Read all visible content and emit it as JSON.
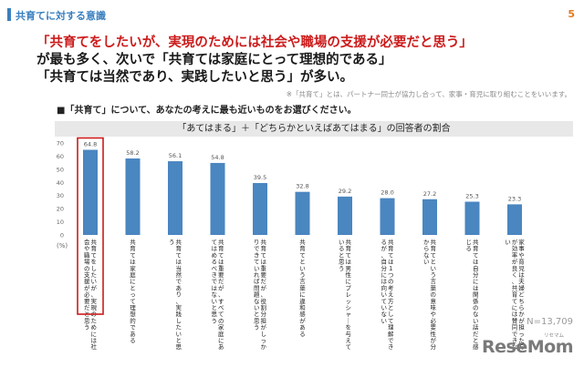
{
  "header": {
    "section_title": "共育てに対する意識",
    "page_number": "5"
  },
  "headline": {
    "line1": "「共育てをしたいが、実現のためには社会や職場の支援が必要だと思う」",
    "line2": "が最も多く、次いで「共育ては家庭にとって理想的である」",
    "line3": "「共育ては当然であり、実践したいと思う」が多い。"
  },
  "footnote": "※「共育て」とは、パートナー同士が協力し合って、家事・育児に取り組むことをいいます。",
  "question": "■「共育て」について、あなたの考えに最も近いものをお選びください。",
  "sample_size": "N=13,709",
  "logo": {
    "text": "ReseMom",
    "small": "リセマム"
  },
  "colors": {
    "bar": "#4a86c0",
    "highlight": "#cc1b1b",
    "accent": "#3a7fbf"
  },
  "chart_data": {
    "type": "bar",
    "title": "「あてはまる」＋「どちらかといえばあてはまる」の回答者の割合",
    "unit_label": "(%)",
    "ylim": [
      0,
      70
    ],
    "yticks": [
      0,
      10,
      20,
      30,
      40,
      50,
      60,
      70
    ],
    "highlight_index": 0,
    "categories": [
      "共育てをしたいが、実現のためには社会や職場の支援が必要だと思う",
      "共育ては家庭にとって理想的である",
      "共育ては当然であり、実践したいと思う",
      "共育ては重要だが、すべての家庭にあてはめるべきではないと思う",
      "共育ては重要だが、役割分担がしっかりできていれば問題ないと思う",
      "共育てという言葉に違和感がある",
      "共育ては男性にプレッシャーを与えていると思う",
      "共育ては１つの考え方として理解できるが、自分には向いていない",
      "共育てという言葉の意味や必要性が分からない",
      "共育ては自分には関係のない話だと感じる",
      "家事や育児は夫婦どちらかが担った方が効率が良く、共育てには賛同できない"
    ],
    "values": [
      64.8,
      58.2,
      56.1,
      54.8,
      39.5,
      32.8,
      29.2,
      28.0,
      27.2,
      25.3,
      23.3
    ]
  }
}
